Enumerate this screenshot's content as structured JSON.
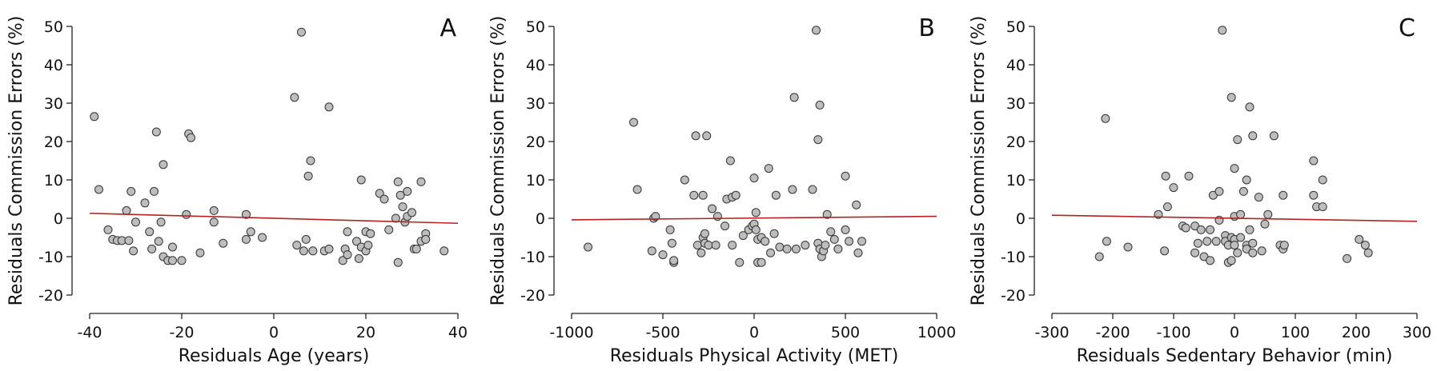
{
  "chart_data": [
    {
      "type": "scatter",
      "panel": "A",
      "xlabel": "Residuals Age (years)",
      "ylabel": "Residuals Commission Errors (%)",
      "xlim": [
        -40,
        40
      ],
      "xticks": [
        -40,
        -20,
        0,
        20,
        40
      ],
      "ylim": [
        -20,
        50
      ],
      "yticks": [
        -20,
        -10,
        0,
        10,
        20,
        30,
        40,
        50
      ],
      "point_color": "#bdbdbd",
      "x": [
        -39,
        -38,
        -36,
        -35,
        -34,
        -33,
        -32,
        -31.5,
        -31,
        -30.5,
        -30,
        -28,
        -27,
        -26.5,
        -26,
        -25.5,
        -25,
        -24.5,
        -24,
        -24,
        -23,
        -22,
        -22,
        -20,
        -19,
        -18.5,
        -18,
        -16,
        -13,
        -13,
        -11,
        -6,
        -6,
        -5,
        -2.5,
        4.5,
        5,
        6,
        6.5,
        7,
        7.5,
        8,
        8.5,
        11,
        12,
        12,
        15,
        15.5,
        16,
        16,
        18,
        18.5,
        19,
        19,
        20,
        20,
        20.5,
        21,
        23,
        24,
        25,
        26.5,
        27,
        27,
        27.5,
        28,
        28.5,
        29,
        29,
        30,
        30.5,
        31,
        32,
        32,
        33,
        33,
        37
      ],
      "y": [
        26.5,
        7.5,
        -3,
        -5.5,
        -5.8,
        -5.8,
        2,
        -5.8,
        7,
        -8.5,
        -1,
        4,
        -3.5,
        -8,
        7,
        22.5,
        -6,
        -1,
        14,
        -10,
        -11,
        -7.5,
        -11,
        -11,
        1,
        22,
        21,
        -9,
        2,
        -1,
        -6.5,
        1,
        -5.5,
        -3.5,
        -5,
        31.5,
        -7,
        48.5,
        -8.5,
        -5.5,
        11,
        15,
        -8.5,
        -8.5,
        29,
        -8,
        -11,
        -8,
        -3.5,
        -9.5,
        -6,
        -10.5,
        10,
        -7.5,
        -8.5,
        -3.5,
        -7,
        -4,
        6.5,
        5,
        -3,
        0,
        -11.5,
        9.5,
        6,
        3,
        -1,
        7,
        0.5,
        1.5,
        -8,
        -8,
        9.5,
        -6,
        -4,
        -5.5,
        -8.5
      ],
      "fit": {
        "x": [
          -40,
          40
        ],
        "y": [
          1.3,
          -1.3
        ],
        "color": "#b22222"
      }
    },
    {
      "type": "scatter",
      "panel": "B",
      "xlabel": "Residuals Physical Activity (MET)",
      "ylabel": "Residuals Commission Errors (%)",
      "xlim": [
        -1000,
        1000
      ],
      "xticks": [
        -1000,
        -500,
        0,
        500,
        1000
      ],
      "ylim": [
        -20,
        50
      ],
      "yticks": [
        -20,
        -10,
        0,
        10,
        20,
        30,
        40,
        50
      ],
      "point_color": "#bdbdbd",
      "x": [
        -910,
        -660,
        -640,
        -560,
        -550,
        -540,
        -500,
        -460,
        -450,
        -440,
        -440,
        -380,
        -330,
        -320,
        -310,
        -290,
        -280,
        -280,
        -270,
        -270,
        -260,
        -250,
        -230,
        -210,
        -200,
        -160,
        -150,
        -130,
        -120,
        -120,
        -100,
        -80,
        -60,
        -30,
        -10,
        0,
        0,
        10,
        10,
        20,
        20,
        40,
        40,
        60,
        80,
        90,
        110,
        120,
        140,
        180,
        210,
        220,
        230,
        280,
        320,
        340,
        350,
        350,
        360,
        360,
        370,
        380,
        390,
        400,
        420,
        440,
        460,
        500,
        500,
        520,
        560,
        570,
        590
      ],
      "y": [
        -7.5,
        25,
        7.5,
        -8.5,
        0,
        0.5,
        -9.5,
        -3,
        -6.5,
        -11.5,
        -11,
        10,
        6,
        21.5,
        -7,
        -9,
        6,
        -5,
        -6.5,
        -4,
        21.5,
        -7,
        2.5,
        -7,
        0.5,
        -2,
        5,
        15,
        5.5,
        -7,
        6,
        -11.5,
        -4.5,
        -3,
        -2,
        10.5,
        -1.5,
        1.5,
        -3,
        -5.5,
        -11.5,
        -11.5,
        -5,
        -6,
        13,
        -9,
        -4,
        6,
        -7.5,
        -8,
        7.5,
        31.5,
        -8,
        -7,
        7.5,
        49,
        20.5,
        -6.5,
        29.5,
        -8,
        -10,
        -8.5,
        -7,
        1,
        -3.5,
        -5.5,
        -8,
        11,
        -3,
        -6,
        3.5,
        -9,
        -6
      ],
      "fit": {
        "x": [
          -1000,
          1000
        ],
        "y": [
          -0.4,
          0.5
        ],
        "color": "#b22222"
      }
    },
    {
      "type": "scatter",
      "panel": "C",
      "xlabel": "Residuals Sedentary Behavior (min)",
      "ylabel": "Residuals Commission Errors (%)",
      "xlim": [
        -300,
        300
      ],
      "xticks": [
        -300,
        -200,
        -100,
        0,
        100,
        200,
        300
      ],
      "ylim": [
        -20,
        50
      ],
      "yticks": [
        -20,
        -10,
        0,
        10,
        20,
        30,
        40,
        50
      ],
      "point_color": "#bdbdbd",
      "x": [
        -222,
        -212,
        -210,
        -175,
        -125,
        -115,
        -113,
        -110,
        -100,
        -85,
        -80,
        -75,
        -65,
        -65,
        -60,
        -55,
        -50,
        -45,
        -40,
        -40,
        -35,
        -30,
        -25,
        -25,
        -20,
        -15,
        -15,
        -10,
        -10,
        -5,
        -5,
        -5,
        0,
        0,
        0,
        0,
        5,
        5,
        10,
        10,
        15,
        20,
        20,
        20,
        25,
        25,
        30,
        30,
        30,
        40,
        45,
        50,
        55,
        65,
        75,
        80,
        80,
        82,
        130,
        130,
        135,
        145,
        145,
        185,
        205,
        215,
        220
      ],
      "y": [
        -10,
        26,
        -6,
        -7.5,
        1,
        -8.5,
        11,
        3,
        8,
        -2,
        -2.5,
        11,
        -2,
        -9,
        -6.5,
        -3,
        -10,
        -6,
        -3,
        -11,
        6,
        -6,
        7,
        -0.5,
        49,
        -4.5,
        -6,
        -7,
        -11.5,
        31.5,
        -5,
        -11,
        13,
        -5.5,
        0.5,
        -7,
        20.5,
        -9,
        1,
        -5,
        7,
        10,
        -7,
        -8,
        29,
        -3,
        21.5,
        -6.5,
        -9,
        5.5,
        -8.5,
        -1.5,
        1,
        21.5,
        -7,
        6,
        -8,
        -7,
        6,
        15,
        3,
        10,
        3,
        -10.5,
        -5.5,
        -7,
        -9
      ],
      "fit": {
        "x": [
          -300,
          300
        ],
        "y": [
          0.8,
          -0.8
        ],
        "color": "#b22222"
      }
    }
  ]
}
